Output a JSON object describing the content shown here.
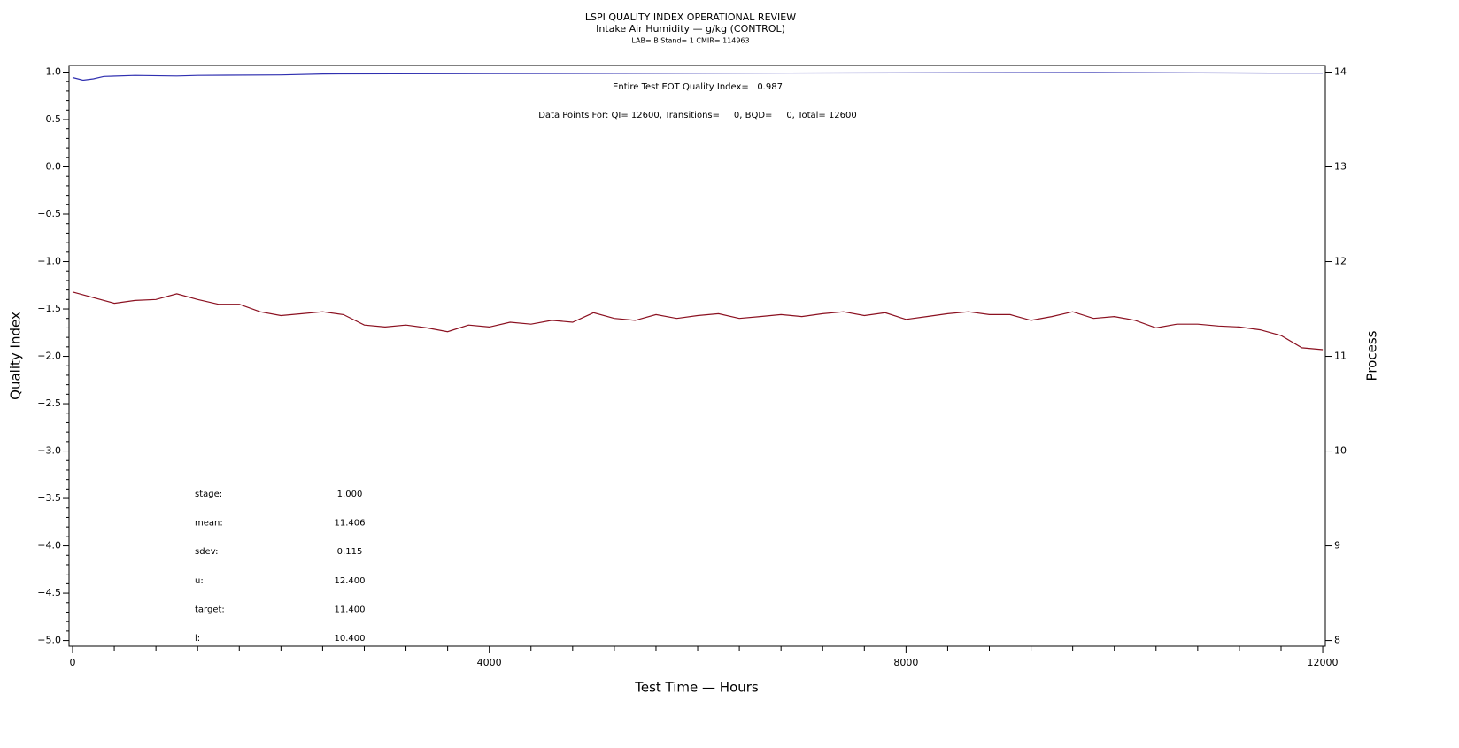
{
  "chart_data": {
    "type": "line",
    "title": "LSPI QUALITY INDEX OPERATIONAL REVIEW",
    "subtitle": "Intake Air Humidity — g/kg (CONTROL)",
    "caption": "LAB= B Stand= 1 CMIR= 114963",
    "annotations": [
      "Entire Test EOT Quality Index=   0.987",
      "Data Points For: QI= 12600, Transitions=     0, BQD=     0, Total= 12600"
    ],
    "stats": [
      {
        "label": "stage:",
        "value": "1.000"
      },
      {
        "label": "mean:",
        "value": "11.406"
      },
      {
        "label": "sdev:",
        "value": "0.115"
      },
      {
        "label": "u:",
        "value": "12.400"
      },
      {
        "label": "target:",
        "value": "11.400"
      },
      {
        "label": "l:",
        "value": "10.400"
      }
    ],
    "xlabel": "Test Time — Hours",
    "ylabel": "Quality Index",
    "y2label": "Process",
    "xlim": [
      -34,
      12025
    ],
    "ylim": [
      -5.06,
      1.07
    ],
    "y2lim": [
      7.94,
      14.07
    ],
    "xticks": [
      0,
      4000,
      8000,
      12000
    ],
    "yticks": [
      {
        "value": -5,
        "label": "−5.0"
      },
      {
        "value": -4.5,
        "label": "−4.5"
      },
      {
        "value": -4,
        "label": "−4.0"
      },
      {
        "value": -3.5,
        "label": "−3.5"
      },
      {
        "value": -3,
        "label": "−3.0"
      },
      {
        "value": -2.5,
        "label": "−2.5"
      },
      {
        "value": -2,
        "label": "−2.0"
      },
      {
        "value": -1.5,
        "label": "−1.5"
      },
      {
        "value": -1,
        "label": "−1.0"
      },
      {
        "value": -0.5,
        "label": "−0.5"
      },
      {
        "value": 0,
        "label": "0.0"
      },
      0.5,
      {
        "value": 1,
        "label": "1.0"
      }
    ],
    "y2ticks": [
      8,
      9,
      10,
      11,
      12,
      13,
      14
    ],
    "xminorticks": [
      400,
      800,
      1200,
      1600,
      2000,
      2400,
      2800,
      3200,
      3600,
      4400,
      4800,
      5200,
      5600,
      6000,
      6400,
      6800,
      7200,
      7600,
      8400,
      8800,
      9200,
      9600,
      10000,
      10400,
      10800,
      11200,
      11600
    ],
    "yminorticks": [
      -4.9,
      -4.8,
      -4.7,
      -4.6,
      -4.4,
      -4.3,
      -4.2,
      -4.1,
      -3.9,
      -3.8,
      -3.7,
      -3.6,
      -3.4,
      -3.3,
      -3.2,
      -3.1,
      -2.9,
      -2.8,
      -2.7,
      -2.6,
      -2.4,
      -2.3,
      -2.2,
      -2.1,
      -1.9,
      -1.8,
      -1.7,
      -1.6,
      -1.4,
      -1.3,
      -1.2,
      -1.1,
      -0.9,
      -0.8,
      -0.7,
      -0.6,
      -0.4,
      -0.3,
      -0.2,
      -0.1,
      0.1,
      0.2,
      0.3,
      0.4,
      0.6,
      0.7,
      0.8,
      0.9
    ],
    "series": [
      {
        "color": "#3030b0",
        "axis": "y",
        "x": [
          0,
          100,
          200,
          300,
          600,
          1000,
          1200,
          2000,
          2400,
          4000,
          9800,
          11500,
          12000
        ],
        "values": [
          0.944,
          0.916,
          0.93,
          0.955,
          0.965,
          0.96,
          0.965,
          0.97,
          0.98,
          0.985,
          0.995,
          0.99,
          0.99
        ]
      },
      {
        "color": "#8b1020",
        "axis": "y2",
        "x": [
          0,
          200,
          400,
          600,
          800,
          1000,
          1200,
          1400,
          1600,
          1800,
          2000,
          2200,
          2400,
          2600,
          2800,
          3000,
          3200,
          3400,
          3600,
          3800,
          4000,
          4200,
          4400,
          4600,
          4800,
          5000,
          5200,
          5400,
          5600,
          5800,
          6000,
          6200,
          6400,
          6600,
          6800,
          7000,
          7200,
          7400,
          7600,
          7800,
          8000,
          8200,
          8400,
          8600,
          8800,
          9000,
          9200,
          9400,
          9600,
          9800,
          10000,
          10200,
          10400,
          10600,
          10800,
          11000,
          11200,
          11400,
          11600,
          11800,
          12000
        ],
        "values": [
          11.68,
          11.62,
          11.56,
          11.59,
          11.6,
          11.66,
          11.6,
          11.55,
          11.55,
          11.47,
          11.43,
          11.45,
          11.47,
          11.44,
          11.33,
          11.31,
          11.33,
          11.3,
          11.26,
          11.33,
          11.31,
          11.36,
          11.34,
          11.38,
          11.36,
          11.46,
          11.4,
          11.38,
          11.44,
          11.4,
          11.43,
          11.45,
          11.4,
          11.42,
          11.44,
          11.42,
          11.45,
          11.47,
          11.43,
          11.46,
          11.39,
          11.42,
          11.45,
          11.47,
          11.44,
          11.44,
          11.38,
          11.42,
          11.47,
          11.4,
          11.42,
          11.38,
          11.3,
          11.34,
          11.34,
          11.32,
          11.31,
          11.28,
          11.22,
          11.09,
          11.07
        ]
      }
    ]
  }
}
